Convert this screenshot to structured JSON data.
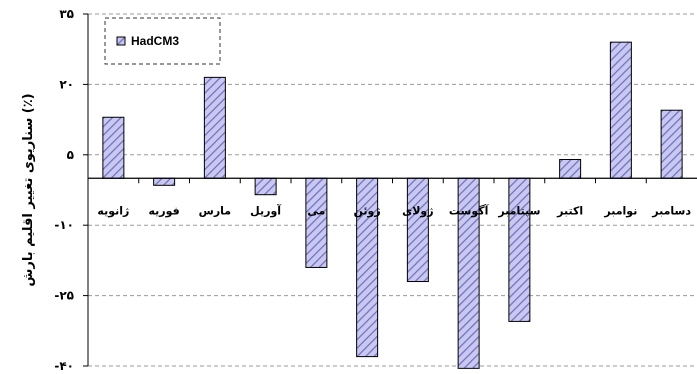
{
  "chart_data": {
    "type": "bar",
    "ylabel": "سناریوی تغییر اقلیم بارش (٪)",
    "ylim": [
      -40,
      35
    ],
    "yticks": [
      35,
      20,
      5,
      -10,
      -25,
      -40
    ],
    "ytick_labels": [
      "۳۵",
      "۲۰",
      "۵",
      "-۱۰",
      "-۲۵",
      "-۴۰"
    ],
    "grid": true,
    "legend_position": "top-left",
    "categories": [
      "ژانویه",
      "فوریه",
      "مارس",
      "آوریل",
      "می",
      "ژوئن",
      "ژولای",
      "آگوست",
      "سپتامبر",
      "اکتبر",
      "نوامبر",
      "دسامبر"
    ],
    "series": [
      {
        "name": "HadCM3",
        "values": [
          13,
          -1.5,
          21.5,
          -3.5,
          -19,
          -38,
          -22,
          -40.5,
          -30.5,
          4,
          29,
          14.5
        ]
      }
    ],
    "bar_fill": "#c8c8f0",
    "bar_hatch": "#7070c0"
  }
}
